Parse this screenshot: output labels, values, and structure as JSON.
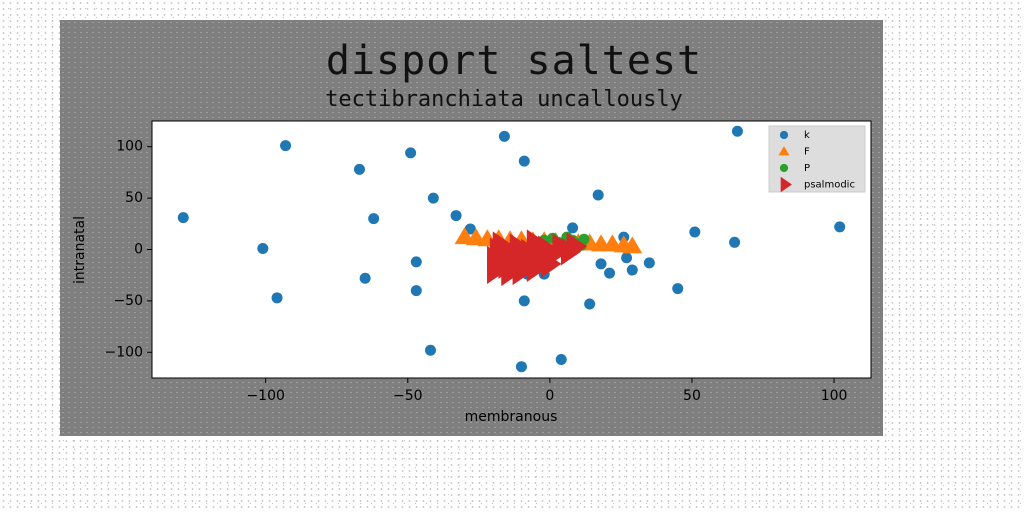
{
  "chart_data": {
    "type": "scatter",
    "title": "disport saltest",
    "subtitle": "tectibranchiata uncallously",
    "xlabel": "membranous",
    "ylabel": "intranatal",
    "xlim": [
      -140,
      113
    ],
    "ylim": [
      -125,
      125
    ],
    "xticks": [
      -100,
      -50,
      0,
      50,
      100
    ],
    "yticks": [
      -100,
      -50,
      0,
      50,
      100
    ],
    "grid": false,
    "legend_position": "top-right",
    "series": [
      {
        "name": "k",
        "marker": "circle",
        "color": "#1f77b4",
        "points": [
          [
            -129,
            31
          ],
          [
            -101,
            1
          ],
          [
            -96,
            -47
          ],
          [
            -93,
            101
          ],
          [
            -67,
            78
          ],
          [
            -65,
            -28
          ],
          [
            -62,
            30
          ],
          [
            -49,
            94
          ],
          [
            -47,
            -12
          ],
          [
            -47,
            -40
          ],
          [
            -41,
            50
          ],
          [
            -42,
            -98
          ],
          [
            -33,
            33
          ],
          [
            -28,
            20
          ],
          [
            -16,
            110
          ],
          [
            -9,
            86
          ],
          [
            -9,
            -50
          ],
          [
            -10,
            -114
          ],
          [
            -8,
            -24
          ],
          [
            -2,
            -24
          ],
          [
            4,
            -107
          ],
          [
            8,
            21
          ],
          [
            14,
            -53
          ],
          [
            17,
            53
          ],
          [
            18,
            -14
          ],
          [
            21,
            -23
          ],
          [
            26,
            12
          ],
          [
            27,
            -8
          ],
          [
            29,
            -20
          ],
          [
            35,
            -13
          ],
          [
            45,
            -38
          ],
          [
            51,
            17
          ],
          [
            65,
            7
          ],
          [
            66,
            115
          ],
          [
            102,
            22
          ]
        ]
      },
      {
        "name": "F",
        "marker": "triangle-up",
        "color": "#ff7f0e",
        "points": [
          [
            -30,
            12
          ],
          [
            -26,
            11
          ],
          [
            -22,
            10
          ],
          [
            -18,
            10
          ],
          [
            -14,
            9
          ],
          [
            -10,
            9
          ],
          [
            -6,
            8
          ],
          [
            -2,
            8
          ],
          [
            2,
            7
          ],
          [
            6,
            7
          ],
          [
            10,
            6
          ],
          [
            14,
            6
          ],
          [
            18,
            5
          ],
          [
            22,
            5
          ],
          [
            26,
            4
          ],
          [
            29,
            3
          ]
        ]
      },
      {
        "name": "P",
        "marker": "circle",
        "color": "#2ca02c",
        "points": [
          [
            -2,
            9
          ],
          [
            1,
            11
          ],
          [
            3,
            7
          ],
          [
            6,
            12
          ],
          [
            8,
            9
          ],
          [
            10,
            6
          ],
          [
            12,
            10
          ],
          [
            11,
            4
          ]
        ]
      },
      {
        "name": "psalmodic",
        "marker": "triangle-right",
        "color": "#d62728",
        "points": [
          [
            -20,
            -20
          ],
          [
            -20,
            -10
          ],
          [
            -19,
            -2
          ],
          [
            -18,
            4
          ],
          [
            -16,
            -15
          ],
          [
            -14,
            -6
          ],
          [
            -12,
            2
          ],
          [
            -11,
            -21
          ],
          [
            -10,
            -12
          ],
          [
            -8,
            -3
          ],
          [
            -6,
            6
          ],
          [
            -4,
            -9
          ],
          [
            -2,
            0
          ],
          [
            0,
            -5
          ],
          [
            3,
            2
          ],
          [
            6,
            -2
          ],
          [
            8,
            3
          ],
          [
            -15,
            -22
          ],
          [
            -6,
            -18
          ],
          [
            -1,
            -14
          ]
        ]
      }
    ]
  }
}
